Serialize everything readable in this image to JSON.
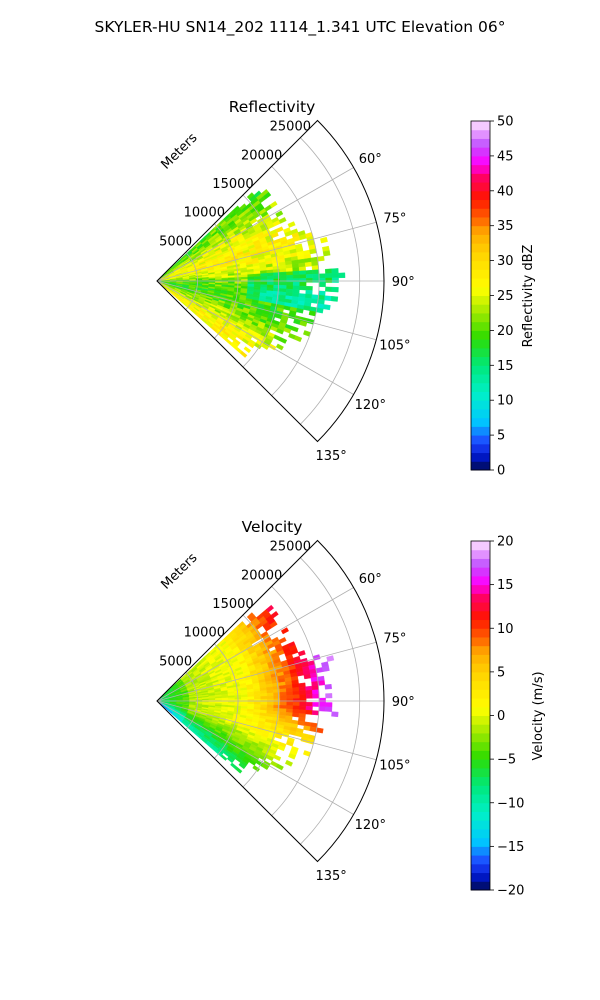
{
  "figure": {
    "title": "SKYLER-HU  SN14_202  1114_1.341 UTC Elevation 06°"
  },
  "chart_data": [
    {
      "type": "heatmap",
      "projection": "polar-sector",
      "title": "Reflectivity",
      "radial_axis_label": "Meters",
      "radial_ticks": [
        5000,
        10000,
        15000,
        20000,
        25000
      ],
      "radial_tick_labels": [
        "5000",
        "10000",
        "15000",
        "20000",
        "25000"
      ],
      "rlim": [
        0,
        28000
      ],
      "azimuth_range_deg": [
        45,
        135
      ],
      "azimuth_ticks": [
        60,
        75,
        90,
        105,
        120,
        135
      ],
      "azimuth_tick_labels": [
        "60°",
        "75°",
        "90°",
        "105°",
        "120°",
        "135°"
      ],
      "grid": true,
      "data_extent_m": 22000,
      "colorbar": {
        "label": "Reflectivity dBZ",
        "vmin": 0,
        "vmax": 50,
        "ticks": [
          0,
          5,
          10,
          15,
          20,
          25,
          30,
          35,
          40,
          45,
          50
        ],
        "tick_labels": [
          "0",
          "5",
          "10",
          "15",
          "20",
          "25",
          "30",
          "35",
          "40",
          "45",
          "50"
        ]
      },
      "field_summary": "mostly 18-27 dBZ (green-yellow), weakening to ~15 dBZ near edges"
    },
    {
      "type": "heatmap",
      "projection": "polar-sector",
      "title": "Velocity",
      "radial_axis_label": "Meters",
      "radial_ticks": [
        5000,
        10000,
        15000,
        20000,
        25000
      ],
      "radial_tick_labels": [
        "5000",
        "10000",
        "15000",
        "20000",
        "25000"
      ],
      "rlim": [
        0,
        28000
      ],
      "azimuth_range_deg": [
        45,
        135
      ],
      "azimuth_ticks": [
        60,
        75,
        90,
        105,
        120,
        135
      ],
      "azimuth_tick_labels": [
        "60°",
        "75°",
        "90°",
        "105°",
        "120°",
        "135°"
      ],
      "grid": true,
      "data_extent_m": 22000,
      "colorbar": {
        "label": "Velocity (m/s)",
        "vmin": -20,
        "vmax": 20,
        "ticks": [
          -20,
          -15,
          -10,
          -5,
          0,
          5,
          10,
          15,
          20
        ],
        "tick_labels": [
          "−20",
          "−15",
          "−10",
          "−5",
          "0",
          "5",
          "10",
          "15",
          "20"
        ]
      },
      "field_summary": "about -8 m/s near radar, 0 to 3 m/s mid-range, 8 to 15 m/s far range at 60-90°, -4 m/s at 105-125°"
    }
  ],
  "colormap_stops": [
    [
      0.0,
      "#000a50"
    ],
    [
      0.04,
      "#0018c8"
    ],
    [
      0.08,
      "#1e46ff"
    ],
    [
      0.14,
      "#00c8ff"
    ],
    [
      0.22,
      "#00f0c8"
    ],
    [
      0.3,
      "#00e87a"
    ],
    [
      0.38,
      "#2edc00"
    ],
    [
      0.45,
      "#9ee800"
    ],
    [
      0.52,
      "#ffff00"
    ],
    [
      0.62,
      "#ffd400"
    ],
    [
      0.68,
      "#ffaa00"
    ],
    [
      0.72,
      "#ff6400"
    ],
    [
      0.78,
      "#ff1400"
    ],
    [
      0.84,
      "#ff0064"
    ],
    [
      0.88,
      "#ff00ff"
    ],
    [
      0.93,
      "#c050ff"
    ],
    [
      0.97,
      "#e8a0ff"
    ],
    [
      1.0,
      "#ffe8ff"
    ]
  ]
}
